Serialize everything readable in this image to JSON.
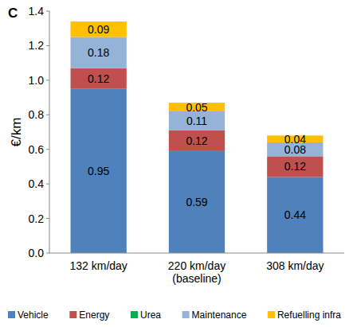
{
  "chart_data": {
    "type": "bar",
    "title": "C",
    "y_label": "€/km",
    "categories": [
      "132 km/day",
      "220 km/day\n(baseline)",
      "308 km/day"
    ],
    "series": [
      {
        "name": "Vehicle",
        "color": "#4f81bd",
        "values": [
          0.95,
          0.59,
          0.44
        ]
      },
      {
        "name": "Energy",
        "color": "#c0504d",
        "values": [
          0.12,
          0.12,
          0.12
        ]
      },
      {
        "name": "Urea",
        "color": "#00b050",
        "values": [
          0,
          0,
          0
        ]
      },
      {
        "name": "Maintenance",
        "color": "#95b3d7",
        "values": [
          0.18,
          0.11,
          0.08
        ]
      },
      {
        "name": "Refuelling infra",
        "color": "#ffc000",
        "values": [
          0.09,
          0.05,
          0.04
        ]
      }
    ],
    "ylim": [
      0,
      1.4
    ],
    "yticks": [
      {
        "value": 0,
        "label": "0.0"
      },
      0.2,
      0.4,
      0.6,
      0.8,
      {
        "value": 1,
        "label": "1.0"
      },
      1.2,
      1.4
    ],
    "stacked": true,
    "data_labels": true,
    "grid": false,
    "legend": "bottom"
  }
}
